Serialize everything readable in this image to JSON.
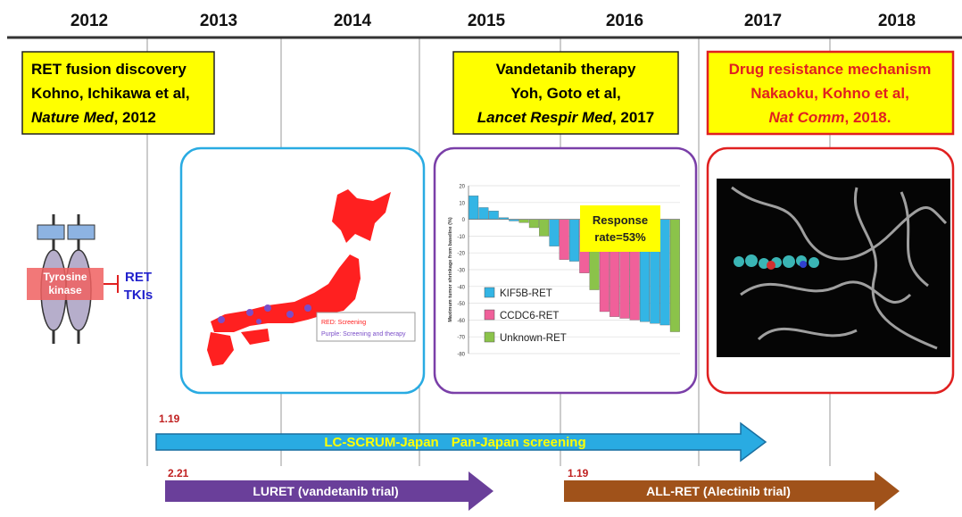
{
  "years": [
    2012,
    2013,
    2014,
    2015,
    2016,
    2017,
    2018
  ],
  "cards": [
    {
      "title": "RET fusion discovery",
      "authors": "Kohno, Ichikawa et al,",
      "journal": "Nature Med",
      "rest": ", 2012"
    },
    {
      "title": "Vandetanib therapy",
      "authors": "Yoh, Goto et al,",
      "journal": "Lancet Respir Med",
      "rest": ", 2017"
    },
    {
      "title": "Drug resistance mechanism",
      "authors": "Nakaoku, Kohno et al,",
      "journal": "Nat Comm",
      "rest": ", 2018."
    }
  ],
  "receptor": {
    "kinase": [
      "Tyrosine",
      "kinase"
    ],
    "drug": [
      "RET",
      "TKIs"
    ]
  },
  "map_legend": [
    "RED: Screening",
    "Purple: Screening and therapy"
  ],
  "waterfall": {
    "type": "bar",
    "y_label": "Maximum tumor shrinkage from baseline (%)",
    "ylim": [
      -80,
      20
    ],
    "yticks": [
      20,
      10,
      0,
      -10,
      -20,
      -30,
      -40,
      -50,
      -60,
      -70,
      -80
    ],
    "annotation": [
      "Response",
      "rate=53%"
    ],
    "series": [
      {
        "name": "KIF5B-RET",
        "color": "#33b5e5",
        "values": [
          14,
          7,
          5,
          1,
          -1,
          null,
          null,
          null,
          -16,
          null,
          -25,
          null,
          null,
          null,
          null,
          null,
          null,
          -61,
          -62,
          -63,
          null
        ]
      },
      {
        "name": "CCDC6-RET",
        "color": "#f0609a",
        "values": [
          null,
          null,
          null,
          null,
          null,
          null,
          null,
          null,
          null,
          -24,
          null,
          -32,
          null,
          -55,
          -58,
          -59,
          -60,
          null,
          null,
          null,
          null
        ]
      },
      {
        "name": "Unknown-RET",
        "color": "#8bc34a",
        "values": [
          null,
          null,
          null,
          null,
          null,
          -2,
          -5,
          -10,
          null,
          null,
          null,
          null,
          -42,
          null,
          null,
          null,
          null,
          null,
          null,
          null,
          -67
        ]
      }
    ]
  },
  "trials": [
    {
      "date": "1.19",
      "name": [
        "LC-SCRUM-Japan",
        "Pan-Japan screening"
      ]
    },
    {
      "date": "2.21",
      "name": [
        "LURET (vandetanib trial)"
      ]
    },
    {
      "date": "1.19",
      "name": [
        "ALL-RET (Alectinib trial)"
      ]
    }
  ]
}
